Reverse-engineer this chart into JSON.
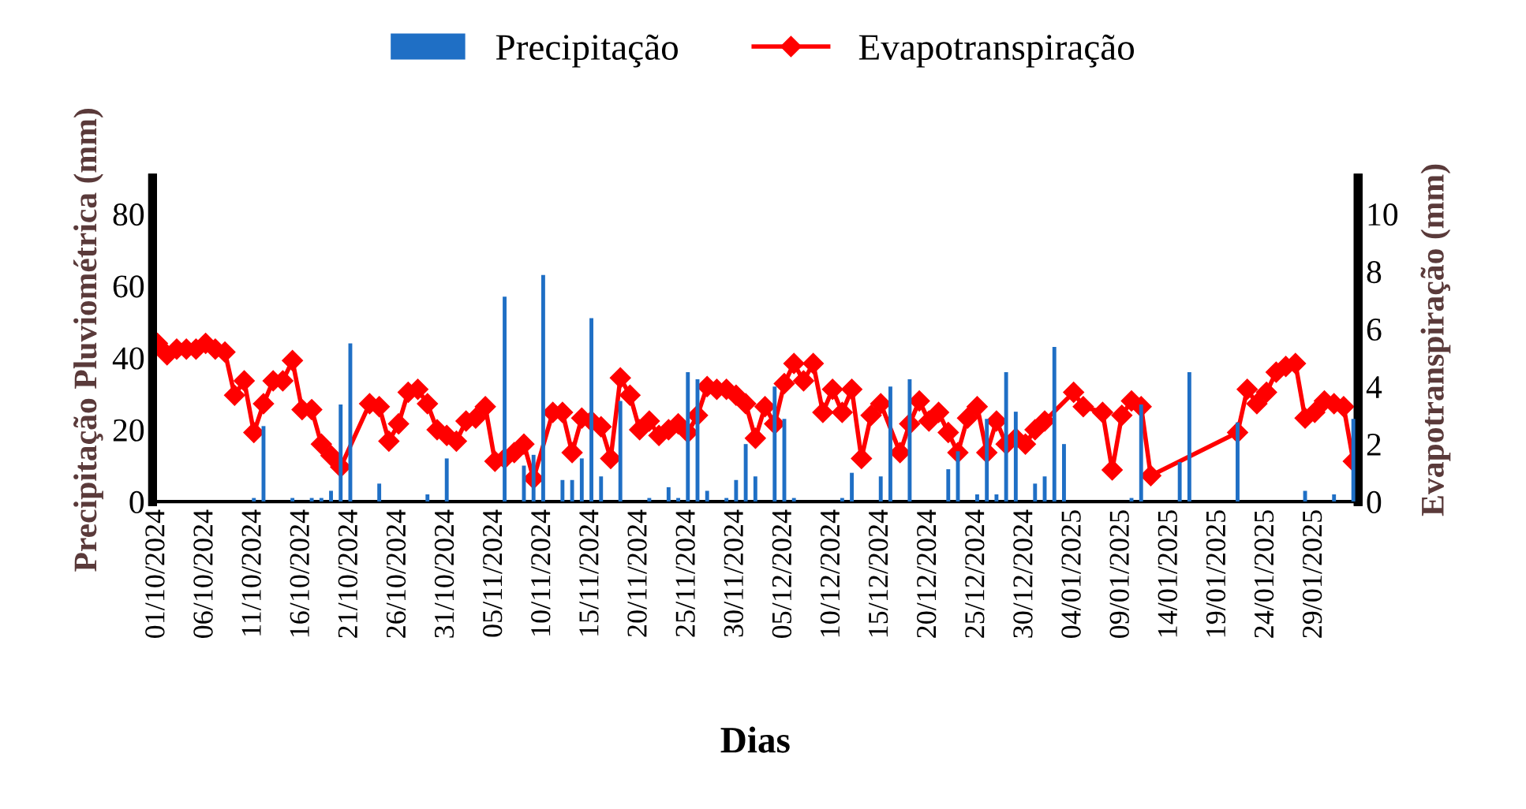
{
  "chart_data": {
    "type": "bar",
    "xlabel": "Dias",
    "ylabel": "Precipitação Pluviométrica (mm)",
    "y2label": "Evapotranspiração (mm)",
    "categories": [
      "01/10/2024",
      null,
      null,
      null,
      null,
      "06/10/2024",
      null,
      null,
      null,
      null,
      "11/10/2024",
      null,
      null,
      null,
      null,
      "16/10/2024",
      null,
      null,
      null,
      null,
      "21/10/2024",
      null,
      null,
      null,
      null,
      "26/10/2024",
      null,
      null,
      null,
      null,
      "31/10/2024",
      null,
      null,
      null,
      null,
      "05/11/2024",
      null,
      null,
      null,
      null,
      "10/11/2024",
      null,
      null,
      null,
      null,
      "15/11/2024",
      null,
      null,
      null,
      null,
      "20/11/2024",
      null,
      null,
      null,
      null,
      "25/11/2024",
      null,
      null,
      null,
      null,
      "30/11/2024",
      null,
      null,
      null,
      null,
      "05/12/2024",
      null,
      null,
      null,
      null,
      "10/12/2024",
      null,
      null,
      null,
      null,
      "15/12/2024",
      null,
      null,
      null,
      null,
      "20/12/2024",
      null,
      null,
      null,
      null,
      "25/12/2024",
      null,
      null,
      null,
      null,
      "30/12/2024",
      null,
      null,
      null,
      null,
      "04/01/2025",
      null,
      null,
      null,
      null,
      "09/01/2025",
      null,
      null,
      null,
      null,
      "14/01/2025",
      null,
      null,
      null,
      null,
      "19/01/2025",
      null,
      null,
      null,
      null,
      "24/01/2025",
      null,
      null,
      null,
      null,
      "29/01/2025",
      null,
      null,
      null,
      null
    ],
    "ylim": [
      0,
      90
    ],
    "yticks": [
      0,
      20,
      40,
      60,
      80
    ],
    "y2lim": [
      0,
      11.25
    ],
    "y2ticks": [
      0,
      2,
      4,
      6,
      8,
      10
    ],
    "legend": "top",
    "marker": "diamond",
    "line_style": "solid",
    "series": [
      {
        "name": "Precipitação",
        "color": "#1f6fc5",
        "values": [
          0,
          0,
          0,
          0,
          0,
          0,
          0,
          0,
          0,
          0,
          1,
          21,
          0,
          0,
          1,
          0,
          1,
          1,
          3,
          27,
          44,
          0,
          0,
          5,
          0,
          0,
          0,
          0,
          2,
          0,
          12,
          0,
          0,
          0,
          0,
          0,
          57,
          0,
          10,
          13,
          63,
          0,
          6,
          6,
          12,
          51,
          7,
          0,
          28,
          0,
          0,
          1,
          0,
          4,
          1,
          36,
          34,
          3,
          0,
          1,
          6,
          16,
          7,
          0,
          32,
          23,
          1,
          0,
          0,
          0,
          0,
          1,
          8,
          0,
          0,
          7,
          32,
          0,
          34,
          0,
          0,
          0,
          9,
          14,
          0,
          2,
          23,
          2,
          36,
          25,
          0,
          5,
          7,
          43,
          16,
          0,
          0,
          0,
          0,
          0,
          0,
          1,
          27,
          0,
          0,
          0,
          11,
          36,
          0,
          0,
          0,
          0,
          22,
          0,
          0,
          0,
          0,
          0,
          0,
          3,
          0,
          0,
          2,
          0,
          23
        ]
      },
      {
        "name": "Evapotranspiração",
        "type": "line",
        "axis": "y2",
        "color": "#ff0000",
        "values": [
          5.5,
          5.1,
          5.3,
          5.3,
          5.3,
          5.5,
          5.3,
          5.2,
          3.7,
          4.2,
          2.4,
          3.4,
          4.2,
          4.2,
          4.9,
          3.2,
          3.2,
          2.0,
          1.6,
          1.2,
          null,
          null,
          3.4,
          3.3,
          2.1,
          2.7,
          3.8,
          3.9,
          3.4,
          2.5,
          2.3,
          2.1,
          2.8,
          2.9,
          3.3,
          1.4,
          1.5,
          1.7,
          2.0,
          0.8,
          null,
          3.1,
          3.1,
          1.7,
          2.9,
          2.8,
          2.6,
          1.5,
          4.3,
          3.7,
          2.5,
          2.8,
          2.3,
          2.5,
          2.7,
          2.4,
          3.0,
          4.0,
          3.9,
          3.9,
          3.7,
          3.4,
          2.2,
          3.3,
          2.7,
          4.1,
          4.8,
          4.2,
          4.8,
          3.1,
          3.9,
          3.1,
          3.9,
          1.5,
          3.0,
          3.4,
          null,
          1.7,
          2.7,
          3.5,
          2.8,
          3.1,
          2.4,
          1.7,
          2.9,
          3.3,
          1.7,
          2.8,
          2.0,
          2.2,
          2.0,
          2.5,
          2.8,
          null,
          null,
          3.8,
          3.3,
          null,
          3.1,
          1.1,
          3.0,
          3.5,
          3.3,
          0.9,
          null,
          null,
          null,
          null,
          null,
          null,
          null,
          null,
          2.4,
          3.9,
          3.4,
          3.8,
          4.5,
          4.7,
          4.8,
          2.9,
          3.1,
          3.5,
          3.4,
          3.3,
          1.4
        ]
      }
    ]
  }
}
